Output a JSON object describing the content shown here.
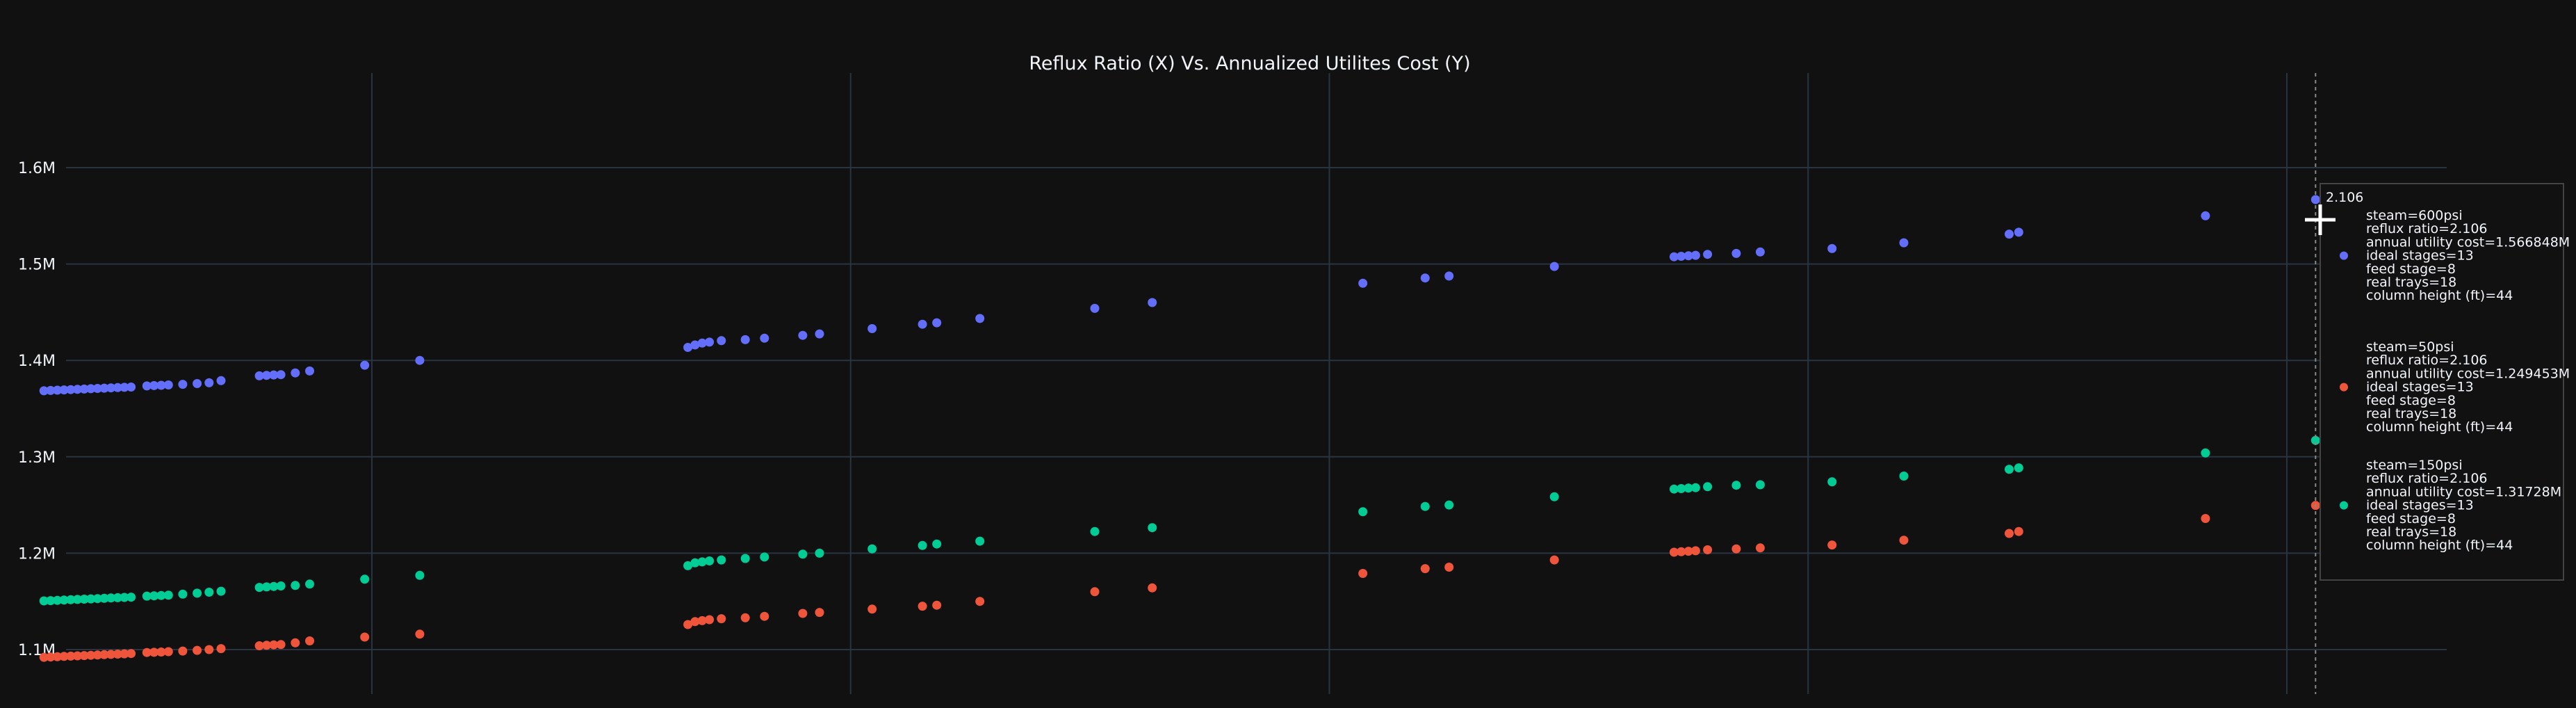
{
  "chart_data": {
    "type": "scatter",
    "title": "Reflux Ratio (X) Vs. Annualized Utilites Cost (Y)",
    "xlabel": "",
    "ylabel": "",
    "xlim": [
      1.6,
      2.26
    ],
    "ylim": [
      1.085,
      1.7
    ],
    "y_ticks": [
      {
        "value": 1.1,
        "label": "1.1M"
      },
      {
        "value": 1.2,
        "label": "1.2M"
      },
      {
        "value": 1.3,
        "label": "1.3M"
      },
      {
        "value": 1.4,
        "label": "1.4M"
      },
      {
        "value": 1.5,
        "label": "1.5M"
      },
      {
        "value": 1.6,
        "label": "1.6M"
      }
    ],
    "x_gridlines": [
      1.7,
      1.8,
      1.9,
      2.0,
      2.1
    ],
    "grid": true,
    "series": [
      {
        "steam": "600psi",
        "color": "#636efa",
        "x": [
          1.6315,
          1.6329,
          1.6343,
          1.6357,
          1.6371,
          1.6385,
          1.6399,
          1.6413,
          1.6427,
          1.6441,
          1.6455,
          1.6469,
          1.6483,
          1.6497,
          1.653,
          1.6545,
          1.656,
          1.6575,
          1.6605,
          1.6635,
          1.666,
          1.6685,
          1.6765,
          1.678,
          1.6795,
          1.681,
          1.684,
          1.687,
          1.6985,
          1.71,
          1.766,
          1.7675,
          1.769,
          1.7705,
          1.773,
          1.778,
          1.782,
          1.79,
          1.7935,
          1.8045,
          1.815,
          1.818,
          1.827,
          1.851,
          1.863,
          1.907,
          1.92,
          1.925,
          1.947,
          1.972,
          1.9735,
          1.975,
          1.9765,
          1.979,
          1.985,
          1.99,
          2.005,
          2.02,
          2.042,
          2.044,
          2.083
        ],
        "y": [
          1.3685,
          1.3688,
          1.3691,
          1.3694,
          1.3697,
          1.37,
          1.3703,
          1.3706,
          1.3709,
          1.3712,
          1.3715,
          1.3718,
          1.3721,
          1.3724,
          1.3735,
          1.3739,
          1.3742,
          1.3745,
          1.3752,
          1.376,
          1.3768,
          1.379,
          1.384,
          1.3845,
          1.3849,
          1.3852,
          1.387,
          1.389,
          1.395,
          1.4,
          1.4135,
          1.416,
          1.418,
          1.419,
          1.4205,
          1.4215,
          1.423,
          1.426,
          1.4275,
          1.433,
          1.4375,
          1.439,
          1.4435,
          1.454,
          1.46,
          1.48,
          1.4855,
          1.4875,
          1.4975,
          1.5075,
          1.508,
          1.5085,
          1.509,
          1.51,
          1.511,
          1.5125,
          1.516,
          1.522,
          1.531,
          1.533,
          1.55
        ]
      },
      {
        "steam": "50psi",
        "color": "#ef553b",
        "x": [
          1.6315,
          1.6329,
          1.6343,
          1.6357,
          1.6371,
          1.6385,
          1.6399,
          1.6413,
          1.6427,
          1.6441,
          1.6455,
          1.6469,
          1.6483,
          1.6497,
          1.653,
          1.6545,
          1.656,
          1.6575,
          1.6605,
          1.6635,
          1.666,
          1.6685,
          1.6765,
          1.678,
          1.6795,
          1.681,
          1.684,
          1.687,
          1.6985,
          1.71,
          1.766,
          1.7675,
          1.769,
          1.7705,
          1.773,
          1.778,
          1.782,
          1.79,
          1.7935,
          1.8045,
          1.815,
          1.818,
          1.827,
          1.851,
          1.863,
          1.907,
          1.92,
          1.925,
          1.947,
          1.972,
          1.9735,
          1.975,
          1.9765,
          1.979,
          1.985,
          1.99,
          2.005,
          2.02,
          2.042,
          2.044,
          2.083,
          2.106
        ],
        "y": [
          1.092,
          1.0923,
          1.0926,
          1.0929,
          1.0932,
          1.0935,
          1.0938,
          1.0941,
          1.0944,
          1.0947,
          1.095,
          1.0953,
          1.0956,
          1.0959,
          1.097,
          1.0972,
          1.0975,
          1.0978,
          1.0985,
          1.0992,
          1.1,
          1.101,
          1.104,
          1.1045,
          1.1049,
          1.1052,
          1.107,
          1.109,
          1.113,
          1.116,
          1.126,
          1.129,
          1.13,
          1.131,
          1.132,
          1.133,
          1.1345,
          1.1375,
          1.1385,
          1.142,
          1.145,
          1.146,
          1.15,
          1.16,
          1.164,
          1.179,
          1.184,
          1.1855,
          1.193,
          1.201,
          1.2015,
          1.202,
          1.2025,
          1.2035,
          1.2045,
          1.2055,
          1.2085,
          1.2135,
          1.2205,
          1.2225,
          1.236,
          1.2495
        ]
      },
      {
        "steam": "150psi",
        "color": "#00cc96",
        "x": [
          1.6315,
          1.6329,
          1.6343,
          1.6357,
          1.6371,
          1.6385,
          1.6399,
          1.6413,
          1.6427,
          1.6441,
          1.6455,
          1.6469,
          1.6483,
          1.6497,
          1.653,
          1.6545,
          1.656,
          1.6575,
          1.6605,
          1.6635,
          1.666,
          1.6685,
          1.6765,
          1.678,
          1.6795,
          1.681,
          1.684,
          1.687,
          1.6985,
          1.71,
          1.766,
          1.7675,
          1.769,
          1.7705,
          1.773,
          1.778,
          1.782,
          1.79,
          1.7935,
          1.8045,
          1.815,
          1.818,
          1.827,
          1.851,
          1.863,
          1.907,
          1.92,
          1.925,
          1.947,
          1.972,
          1.9735,
          1.975,
          1.9765,
          1.979,
          1.985,
          1.99,
          2.005,
          2.02,
          2.042,
          2.044,
          2.083,
          2.106
        ],
        "y": [
          1.1505,
          1.1508,
          1.1511,
          1.1514,
          1.1517,
          1.152,
          1.1523,
          1.1526,
          1.1529,
          1.1532,
          1.1535,
          1.1538,
          1.1541,
          1.1544,
          1.1555,
          1.1558,
          1.1561,
          1.1564,
          1.1575,
          1.1585,
          1.1595,
          1.1605,
          1.1645,
          1.165,
          1.1655,
          1.166,
          1.1665,
          1.168,
          1.173,
          1.177,
          1.187,
          1.19,
          1.191,
          1.192,
          1.193,
          1.1945,
          1.196,
          1.199,
          1.2,
          1.2045,
          1.208,
          1.2095,
          1.2125,
          1.2225,
          1.2265,
          1.243,
          1.2485,
          1.25,
          1.2585,
          1.2665,
          1.267,
          1.2675,
          1.268,
          1.269,
          1.2705,
          1.271,
          1.274,
          1.28,
          1.287,
          1.2885,
          1.304,
          1.317
        ]
      }
    ],
    "hover": {
      "x": 2.106,
      "header": "2.106",
      "entries": [
        {
          "color": "#636efa",
          "y": 1.566848,
          "lines": [
            "steam=600psi",
            "reflux ratio=2.106",
            "annual utility cost=1.566848M",
            "ideal stages=13",
            "feed stage=8",
            "real trays=18",
            "column height (ft)=44"
          ]
        },
        {
          "color": "#ef553b",
          "y": 1.249453,
          "lines": [
            "steam=50psi",
            "reflux ratio=2.106",
            "annual utility cost=1.249453M",
            "ideal stages=13",
            "feed stage=8",
            "real trays=18",
            "column height (ft)=44"
          ]
        },
        {
          "color": "#00cc96",
          "y": 1.31728,
          "lines": [
            "steam=150psi",
            "reflux ratio=2.106",
            "annual utility cost=1.31728M",
            "ideal stages=13",
            "feed stage=8",
            "real trays=18",
            "column height (ft)=44"
          ]
        }
      ]
    }
  }
}
